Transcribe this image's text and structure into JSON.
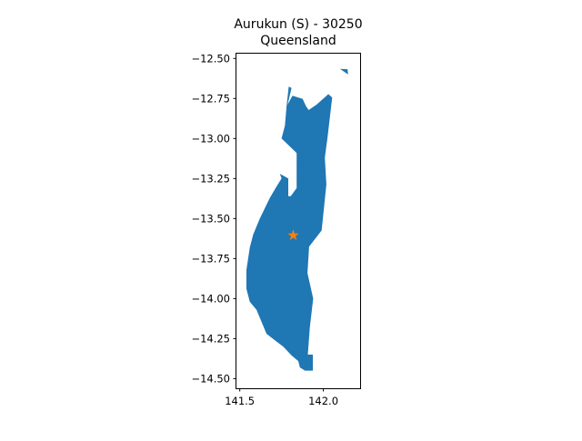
{
  "title": {
    "line1": "Aurukun (S) - 30250",
    "line2": "Queensland"
  },
  "colors": {
    "region_fill": "#1f77b4",
    "centroid_marker": "#ff7f0e",
    "axes": "#000000",
    "background": "#ffffff"
  },
  "chart_data": {
    "type": "map",
    "title": "Aurukun (S) - 30250\nQueensland",
    "xlabel": "",
    "ylabel": "",
    "xlim": [
      141.48,
      142.22
    ],
    "ylim": [
      -14.56,
      -12.47
    ],
    "xticks": [
      141.5,
      142.0
    ],
    "xtick_labels": [
      "141.5",
      "142.0"
    ],
    "yticks": [
      -12.5,
      -12.75,
      -13.0,
      -13.25,
      -13.5,
      -13.75,
      -14.0,
      -14.25,
      -14.5
    ],
    "ytick_labels": [
      "−12.50",
      "−12.75",
      "−13.00",
      "−13.25",
      "−13.50",
      "−13.75",
      "−14.00",
      "−14.25",
      "−14.50"
    ],
    "grid": false,
    "legend": "none",
    "region": {
      "name": "Aurukun (S)",
      "coordinates": [
        [
          141.793,
          -12.676
        ],
        [
          141.81,
          -12.684
        ],
        [
          141.786,
          -12.79
        ],
        [
          141.815,
          -12.733
        ],
        [
          141.876,
          -12.753
        ],
        [
          141.896,
          -12.798
        ],
        [
          141.912,
          -12.822
        ],
        [
          141.96,
          -12.788
        ],
        [
          142.03,
          -12.723
        ],
        [
          142.053,
          -12.744
        ],
        [
          142.025,
          -12.992
        ],
        [
          142.009,
          -13.12
        ],
        [
          142.018,
          -13.287
        ],
        [
          141.99,
          -13.574
        ],
        [
          141.915,
          -13.675
        ],
        [
          141.905,
          -13.84
        ],
        [
          141.939,
          -14.0
        ],
        [
          141.919,
          -14.18
        ],
        [
          141.907,
          -14.35
        ],
        [
          141.937,
          -14.35
        ],
        [
          141.937,
          -14.45
        ],
        [
          141.89,
          -14.45
        ],
        [
          141.86,
          -14.43
        ],
        [
          141.85,
          -14.39
        ],
        [
          141.81,
          -14.355
        ],
        [
          141.76,
          -14.3
        ],
        [
          141.71,
          -14.26
        ],
        [
          141.66,
          -14.22
        ],
        [
          141.64,
          -14.17
        ],
        [
          141.6,
          -14.07
        ],
        [
          141.56,
          -14.02
        ],
        [
          141.54,
          -13.94
        ],
        [
          141.54,
          -13.82
        ],
        [
          141.56,
          -13.68
        ],
        [
          141.58,
          -13.6
        ],
        [
          141.62,
          -13.5
        ],
        [
          141.68,
          -13.37
        ],
        [
          141.72,
          -13.3
        ],
        [
          141.75,
          -13.25
        ],
        [
          141.74,
          -13.22
        ],
        [
          141.79,
          -13.25
        ],
        [
          141.79,
          -13.36
        ],
        [
          141.805,
          -13.36
        ],
        [
          141.84,
          -13.31
        ],
        [
          141.84,
          -13.09
        ],
        [
          141.75,
          -13.0
        ],
        [
          141.77,
          -12.92
        ],
        [
          141.78,
          -12.8
        ]
      ],
      "islet": [
        [
          142.1,
          -12.565
        ],
        [
          142.145,
          -12.567
        ],
        [
          142.148,
          -12.6
        ]
      ]
    },
    "centroid": {
      "lon": 141.82,
      "lat": -13.605,
      "marker": "star"
    }
  }
}
